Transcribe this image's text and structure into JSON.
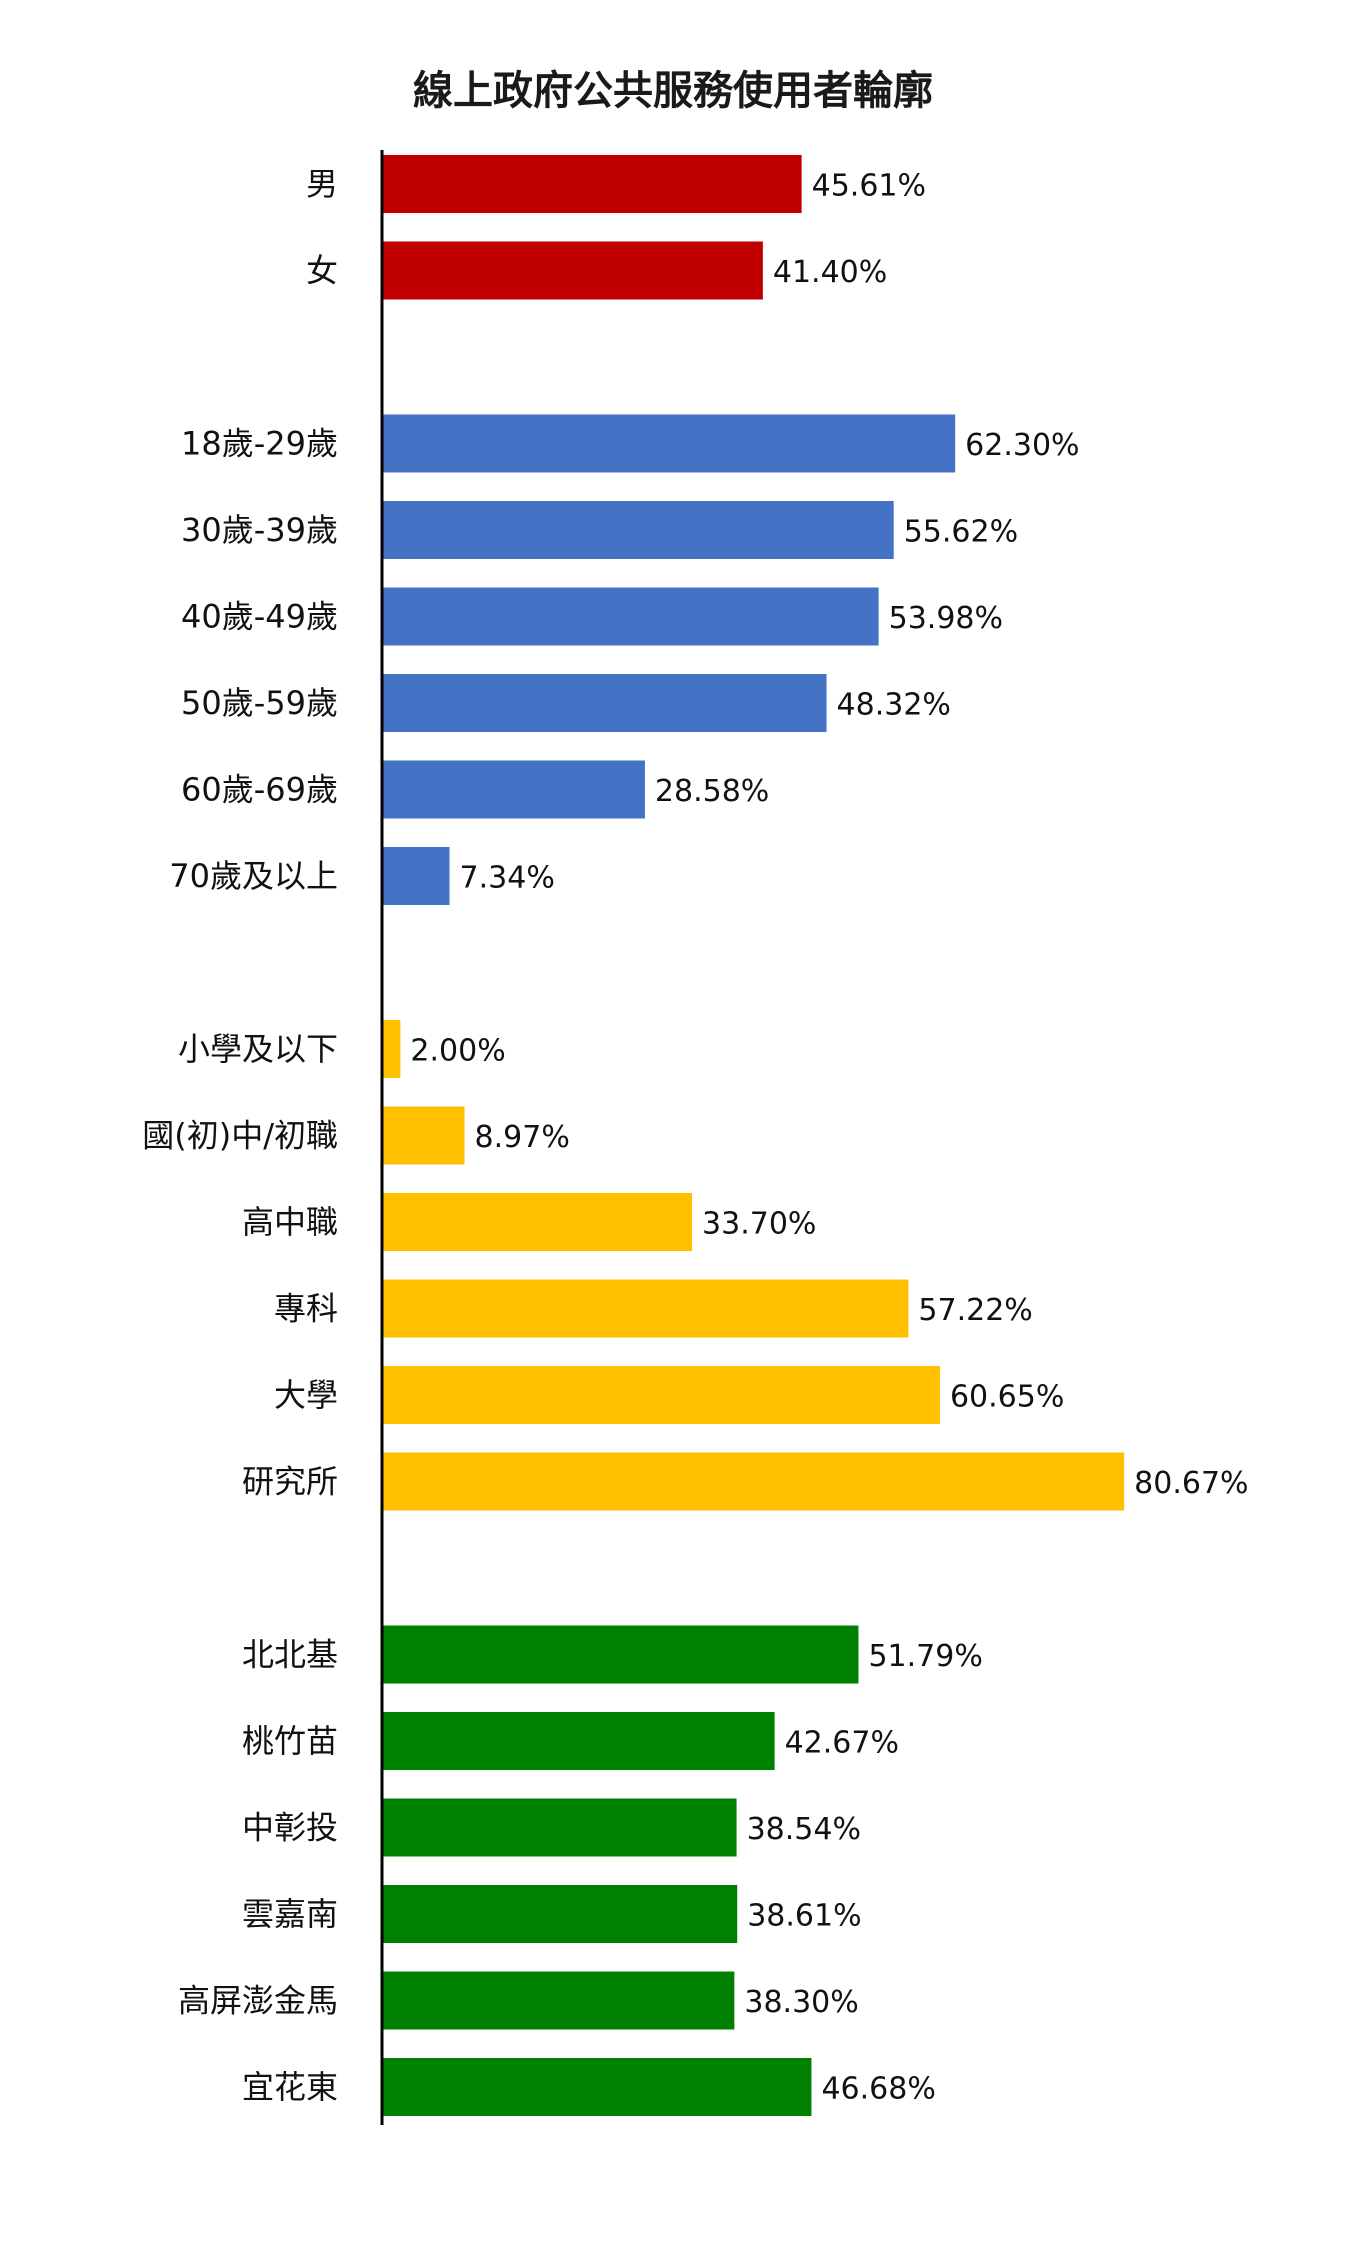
{
  "chart_data": {
    "type": "bar",
    "orientation": "horizontal",
    "title": "線上政府公共服務使用者輪廓",
    "xlabel": "",
    "ylabel": "",
    "xlim": [
      0,
      100
    ],
    "grid": false,
    "value_suffix": "%",
    "groups": [
      {
        "color": "#c00000",
        "categories": [
          "男",
          "女"
        ],
        "values": [
          45.61,
          41.4
        ],
        "value_labels": [
          "45.61%",
          "41.40%"
        ]
      },
      {
        "color": "#4472c4",
        "categories": [
          "18歲-29歲",
          "30歲-39歲",
          "40歲-49歲",
          "50歲-59歲",
          "60歲-69歲",
          "70歲及以上"
        ],
        "values": [
          62.3,
          55.62,
          53.98,
          48.32,
          28.58,
          7.34
        ],
        "value_labels": [
          "62.30%",
          "55.62%",
          "53.98%",
          "48.32%",
          "28.58%",
          "7.34%"
        ]
      },
      {
        "color": "#ffc000",
        "categories": [
          "小學及以下",
          "國(初)中/初職",
          "高中職",
          "專科",
          "大學",
          "研究所"
        ],
        "values": [
          2.0,
          8.97,
          33.7,
          57.22,
          60.65,
          80.67
        ],
        "value_labels": [
          "2.00%",
          "8.97%",
          "33.70%",
          "57.22%",
          "60.65%",
          "80.67%"
        ]
      },
      {
        "color": "#008000",
        "categories": [
          "北北基",
          "桃竹苗",
          "中彰投",
          "雲嘉南",
          "高屏澎金馬",
          "宜花東"
        ],
        "values": [
          51.79,
          42.67,
          38.54,
          38.61,
          38.3,
          46.68
        ],
        "value_labels": [
          "51.79%",
          "42.67%",
          "38.54%",
          "38.61%",
          "38.30%",
          "46.68%"
        ]
      }
    ]
  }
}
